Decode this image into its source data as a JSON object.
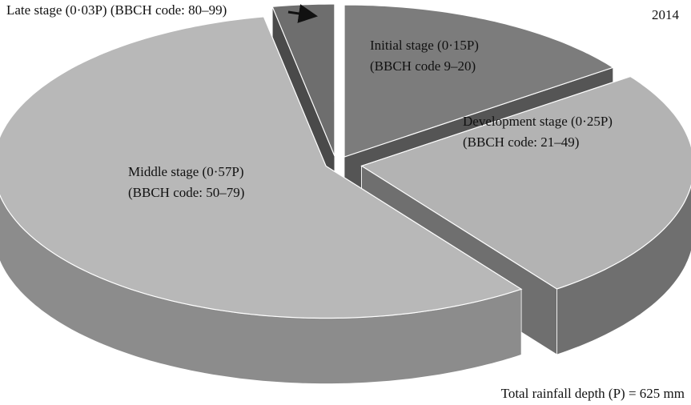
{
  "chart_data": {
    "type": "pie3d",
    "title": "2014",
    "categories": [
      "Initial stage",
      "Development stage",
      "Middle stage",
      "Late stage"
    ],
    "value_labels": [
      "(0·15P)",
      "(0·25P)",
      "(0·57P)",
      "(0·03P)"
    ],
    "codes": [
      "(BBCH code 9–20)",
      "(BBCH code: 21–49)",
      "(BBCH code: 50–79)",
      "(BBCH code: 80–99)"
    ],
    "values": [
      0.15,
      0.25,
      0.57,
      0.03
    ],
    "colors": [
      "#7c7c7c",
      "#b3b3b3",
      "#b8b8b8",
      "#6e6e6e"
    ],
    "side_colors": [
      "#555555",
      "#6f6f6f",
      "#8c8c8c",
      "#4a4a4a"
    ],
    "note": "Total rainfall depth (P) = 625 mm"
  }
}
